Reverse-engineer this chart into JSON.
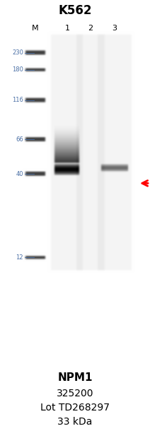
{
  "title": "K562",
  "lane_labels": [
    "M",
    "1",
    "2",
    "3"
  ],
  "marker_sizes": [
    230,
    180,
    116,
    66,
    40,
    12
  ],
  "bottom_labels": [
    "NPM1",
    "325200",
    "Lot TD268297",
    "33 kDa"
  ],
  "bottom_bold": [
    true,
    false,
    false,
    false
  ],
  "arrow_color": "#ff0000",
  "marker_color": "#4a6fa5",
  "fig_width": 2.12,
  "fig_height": 6.27,
  "dpi": 100
}
